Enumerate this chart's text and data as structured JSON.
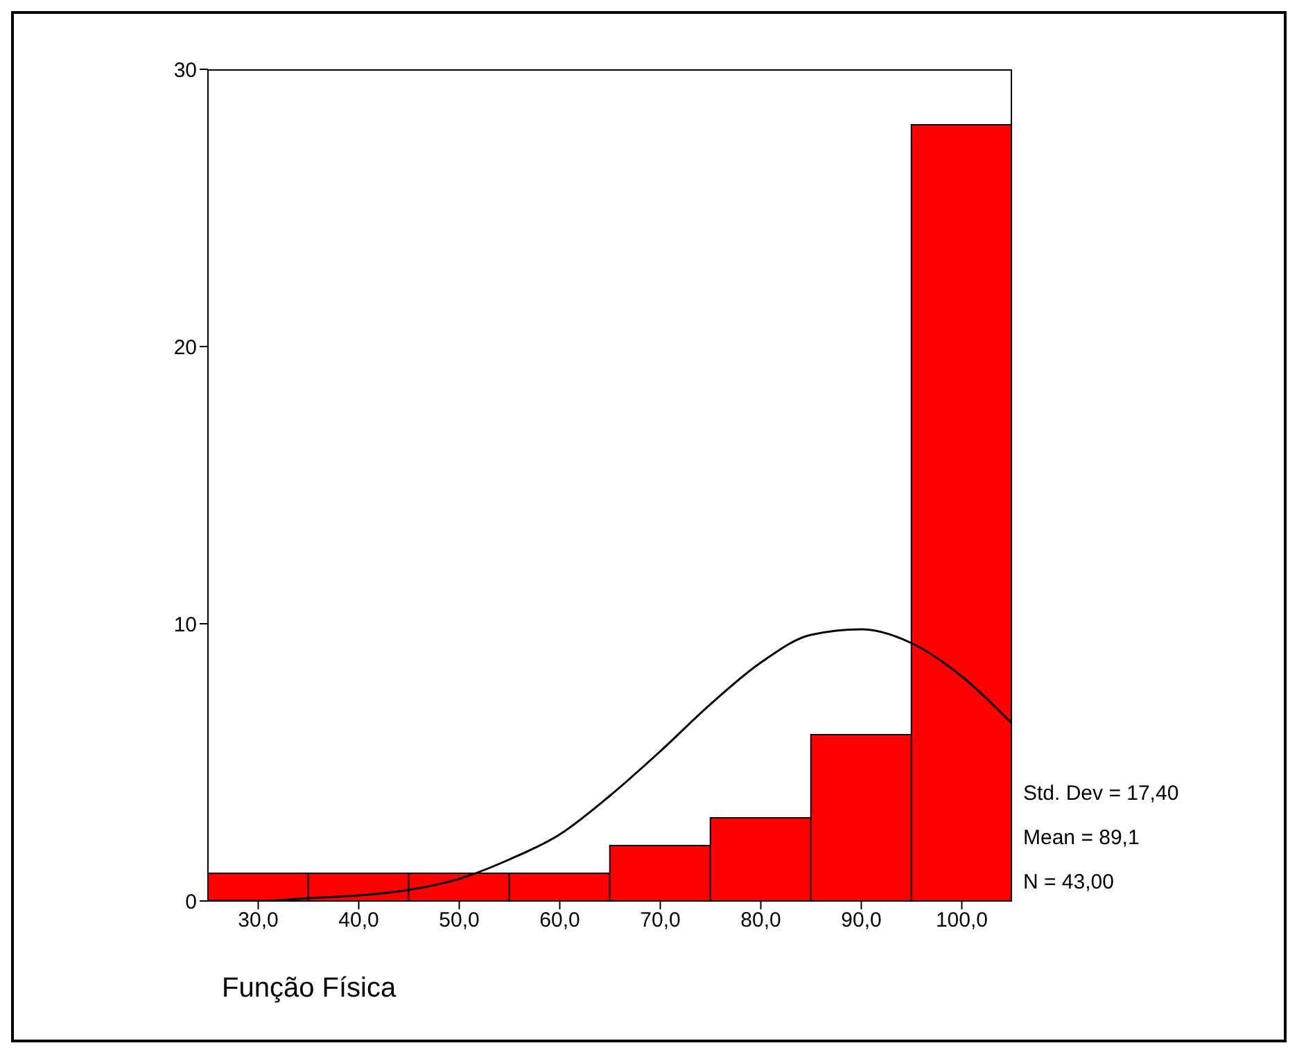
{
  "chart_data": {
    "type": "histogram",
    "xlabel": "Função Física",
    "bins": [
      25,
      35,
      45,
      55,
      65,
      75,
      85,
      95,
      105
    ],
    "values": [
      1,
      1,
      1,
      1,
      2,
      3,
      6,
      28
    ],
    "color": "#ff0000",
    "xlim": [
      25,
      105
    ],
    "xticks": [
      {
        "value": 30,
        "label": "30,0"
      },
      {
        "value": 40,
        "label": "40,0"
      },
      {
        "value": 50,
        "label": "50,0"
      },
      {
        "value": 60,
        "label": "60,0"
      },
      {
        "value": 70,
        "label": "70,0"
      },
      {
        "value": 80,
        "label": "80,0"
      },
      {
        "value": 90,
        "label": "90,0"
      },
      {
        "value": 100,
        "label": "100,0"
      }
    ],
    "ylim": [
      0,
      30
    ],
    "yticks": [
      0,
      10,
      20,
      30
    ],
    "series": [
      {
        "type": "line",
        "color": "#000000",
        "x": [
          25,
          30,
          35,
          40,
          45,
          50,
          55,
          60,
          65,
          70,
          75,
          80,
          85,
          90,
          95,
          100,
          105
        ],
        "values": [
          0,
          0,
          0.1,
          0.2,
          0.4,
          0.8,
          1.5,
          2.4,
          3.8,
          5.4,
          7.1,
          8.6,
          9.6,
          9.8,
          9.3,
          8.1,
          6.4
        ]
      }
    ],
    "annotations": [
      "Std. Dev = 17,40",
      "Mean = 89,1",
      "N = 43,00"
    ]
  }
}
